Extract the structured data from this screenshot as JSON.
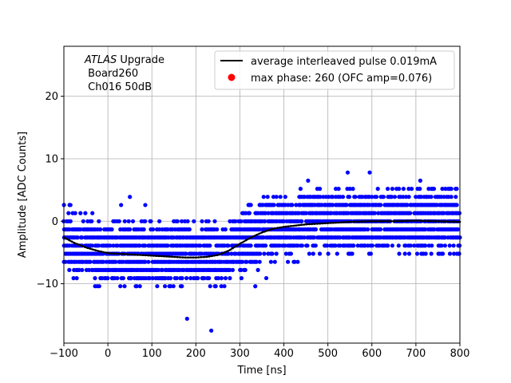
{
  "chart_data": {
    "type": "scatter",
    "xlabel": "Time [ns]",
    "ylabel": "Amplitude [ADC Counts]",
    "xlim": [
      -100,
      800
    ],
    "ylim": [
      -19.5,
      28
    ],
    "xticks": [
      -100,
      0,
      100,
      200,
      300,
      400,
      500,
      600,
      700,
      800
    ],
    "yticks": [
      -10,
      0,
      10,
      20
    ],
    "grid": true,
    "annotation": {
      "italic": "ATLAS",
      "line1_rest": " Upgrade",
      "line2": " Board260",
      "line3": " Ch016 50dB"
    },
    "legend": {
      "placement": "top-right",
      "entries": [
        {
          "label": "average interleaved pulse 0.019mA",
          "marker": "line",
          "color": "#000000"
        },
        {
          "label": "max phase: 260 (OFC amp=0.076)",
          "marker": "dot",
          "color": "#ff0000"
        }
      ]
    },
    "series": [
      {
        "name": "samples",
        "kind": "scatter",
        "color": "#0000ff",
        "x_range": [
          -100,
          800
        ],
        "y_step": 1,
        "band_description": "dense quantized samples spread about ±5 counts around the average pulse",
        "outliers": [
          {
            "x": 30,
            "y": 2.6
          },
          {
            "x": 50,
            "y": 3.9
          },
          {
            "x": 85,
            "y": 2.6
          },
          {
            "x": 180,
            "y": -15.6
          },
          {
            "x": 235,
            "y": -17.5
          },
          {
            "x": 545,
            "y": 7.8
          },
          {
            "x": 595,
            "y": 7.8
          },
          {
            "x": 710,
            "y": 6.5
          },
          {
            "x": 455,
            "y": 6.5
          },
          {
            "x": 335,
            "y": -10.4
          },
          {
            "x": 360,
            "y": -9.1
          },
          {
            "x": -85,
            "y": 2.6
          }
        ]
      },
      {
        "name": "average interleaved pulse 0.019mA",
        "kind": "line",
        "color": "#000000",
        "x": [
          -100,
          -75,
          -50,
          -25,
          0,
          25,
          50,
          100,
          150,
          175,
          200,
          225,
          250,
          275,
          300,
          325,
          350,
          375,
          400,
          425,
          450,
          500,
          550,
          600,
          650,
          700,
          750,
          800
        ],
        "y": [
          -2.6,
          -3.5,
          -4.2,
          -4.7,
          -5.1,
          -5.2,
          -5.3,
          -5.5,
          -5.7,
          -5.8,
          -5.8,
          -5.7,
          -5.4,
          -4.7,
          -3.6,
          -2.6,
          -1.8,
          -1.2,
          -0.9,
          -0.7,
          -0.5,
          -0.3,
          -0.1,
          0.0,
          0.0,
          0.1,
          0.0,
          -0.1
        ]
      }
    ]
  }
}
